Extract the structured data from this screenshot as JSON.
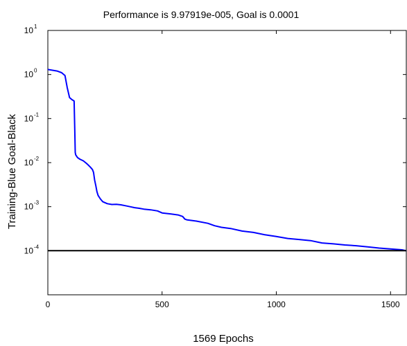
{
  "chart_data": {
    "type": "line",
    "title": "Performance is 9.97919e-005, Goal is 0.0001",
    "xlabel": "1569 Epochs",
    "ylabel": "Training-Blue  Goal-Black",
    "xlim": [
      0,
      1569
    ],
    "ylim": [
      1e-05,
      10
    ],
    "yscale": "log",
    "grid": false,
    "xticks": [
      {
        "value": 0,
        "label": "0"
      },
      {
        "value": 500,
        "label": "500"
      },
      {
        "value": 1000,
        "label": "1000"
      },
      {
        "value": 1500,
        "label": "1500"
      }
    ],
    "yticks": [
      {
        "value": 10,
        "base": "10",
        "exp": "1"
      },
      {
        "value": 1,
        "base": "10",
        "exp": "0"
      },
      {
        "value": 0.1,
        "base": "10",
        "exp": "-1"
      },
      {
        "value": 0.01,
        "base": "10",
        "exp": "-2"
      },
      {
        "value": 0.001,
        "base": "10",
        "exp": "-3"
      },
      {
        "value": 0.0001,
        "base": "10",
        "exp": "-4"
      }
    ],
    "series": [
      {
        "color": "#0000ff",
        "x": [
          0,
          20,
          40,
          60,
          75,
          85,
          95,
          105,
          110,
          115,
          118,
          120,
          122,
          130,
          140,
          155,
          165,
          175,
          185,
          195,
          200,
          205,
          210,
          215,
          220,
          230,
          240,
          260,
          280,
          300,
          320,
          340,
          360,
          380,
          400,
          420,
          450,
          480,
          500,
          540,
          570,
          590,
          600,
          610,
          650,
          700,
          730,
          760,
          800,
          850,
          900,
          950,
          1000,
          1050,
          1100,
          1150,
          1200,
          1250,
          1300,
          1350,
          1400,
          1450,
          1500,
          1550,
          1569
        ],
        "values": [
          1.3,
          1.25,
          1.2,
          1.1,
          0.95,
          0.5,
          0.3,
          0.27,
          0.26,
          0.25,
          0.05,
          0.017,
          0.015,
          0.013,
          0.012,
          0.011,
          0.01,
          0.009,
          0.008,
          0.007,
          0.006,
          0.004,
          0.003,
          0.0022,
          0.0018,
          0.0015,
          0.0013,
          0.00117,
          0.00112,
          0.00113,
          0.0011,
          0.00105,
          0.001,
          0.00095,
          0.00092,
          0.00088,
          0.00085,
          0.0008,
          0.00072,
          0.00068,
          0.00065,
          0.0006,
          0.00052,
          0.0005,
          0.00047,
          0.00042,
          0.00037,
          0.00034,
          0.00032,
          0.00028,
          0.00026,
          0.00023,
          0.00021,
          0.00019,
          0.00018,
          0.00017,
          0.00015,
          0.000143,
          0.000135,
          0.00013,
          0.000122,
          0.000115,
          0.00011,
          0.000105,
          9.98e-05
        ]
      },
      {
        "color": "#000000",
        "x": [
          0,
          1569
        ],
        "values": [
          0.0001,
          0.0001
        ]
      }
    ]
  }
}
